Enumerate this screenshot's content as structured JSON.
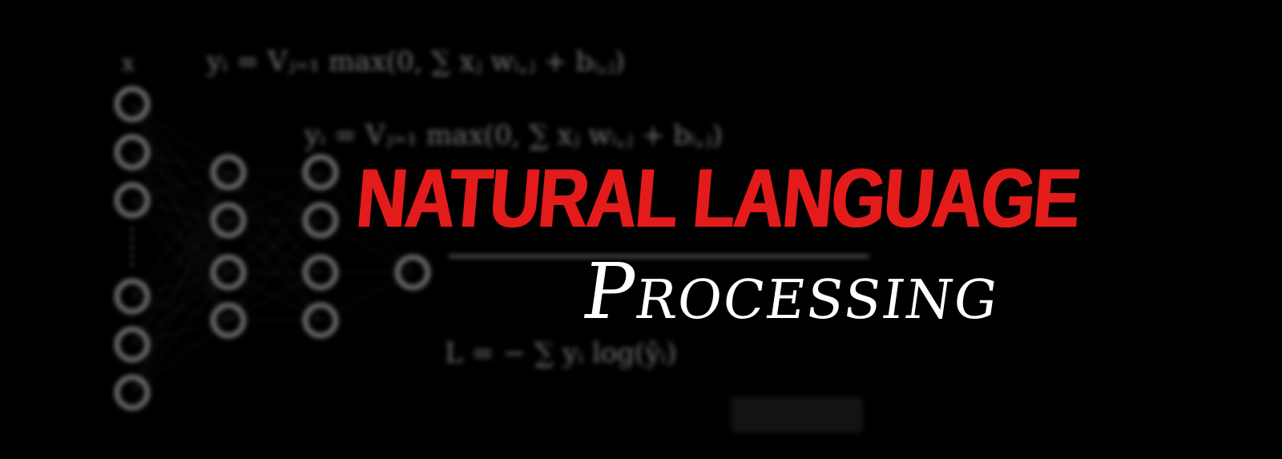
{
  "banner": {
    "title_main": "NATURAL LANGUAGE",
    "title_sub": "Processing",
    "colors": {
      "background": "#000000",
      "title_main": "#e41b1b",
      "title_sub": "#ffffff",
      "background_art": "#d8d8d8"
    }
  },
  "background_art": {
    "input_label": "x",
    "formulas": [
      "yᵢ = Vⱼ₌₁ max(0, ∑ xⱼ wᵢ,ⱼ + bᵢ,ⱼ)",
      "yᵢ = Vⱼ₌₁ max(0, ∑ xⱼ wᵢ,ⱼ + bᵢ,ⱼ)",
      "L = − ∑ yᵢ log(ŷᵢ)"
    ]
  }
}
